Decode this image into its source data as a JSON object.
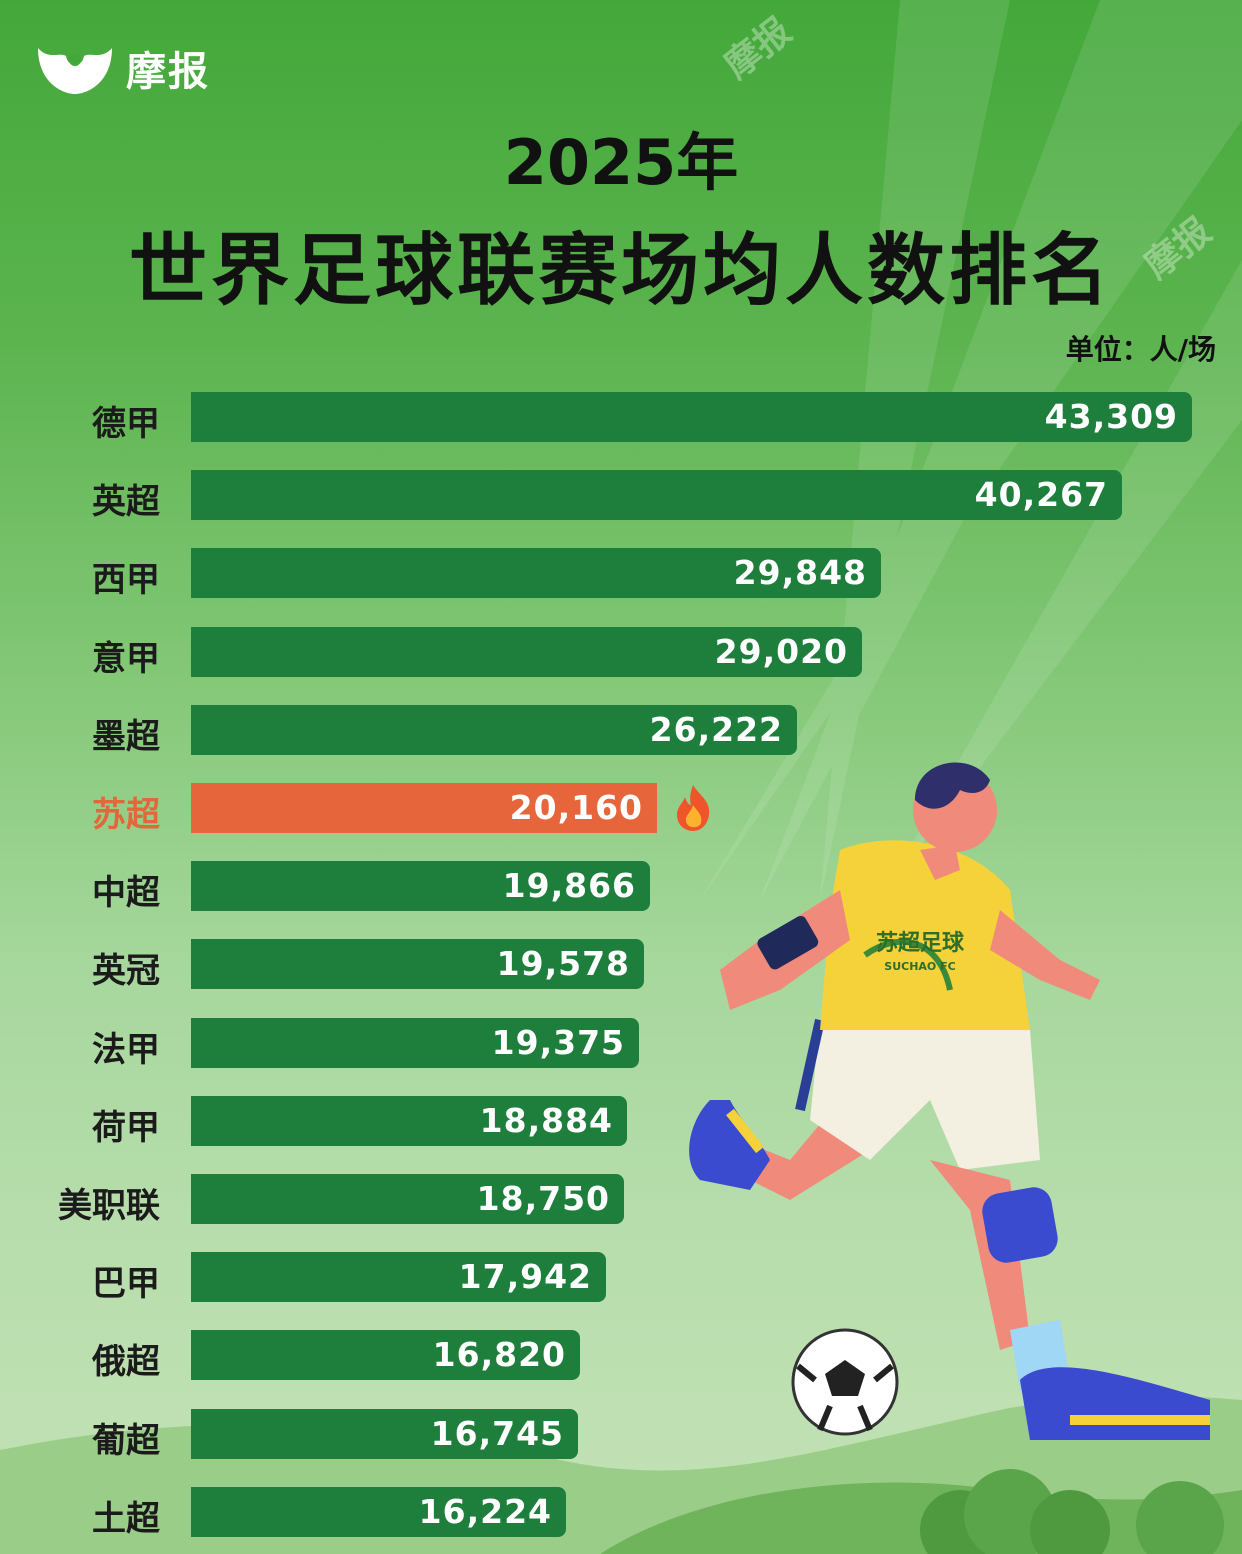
{
  "brand": {
    "logo_text": "摩报",
    "watermark_text": "摩报"
  },
  "chart_data": {
    "type": "bar",
    "orientation": "horizontal",
    "title": "2025年",
    "subtitle": "世界足球联赛场均人数排名",
    "unit_label": "单位：人/场",
    "categories": [
      "德甲",
      "英超",
      "西甲",
      "意甲",
      "墨超",
      "苏超",
      "中超",
      "英冠",
      "法甲",
      "荷甲",
      "美职联",
      "巴甲",
      "俄超",
      "葡超",
      "土超"
    ],
    "values": [
      43309,
      40267,
      29848,
      29020,
      26222,
      20160,
      19866,
      19578,
      19375,
      18884,
      18750,
      17942,
      16820,
      16745,
      16224
    ],
    "value_labels": [
      "43,309",
      "40,267",
      "29,848",
      "29,020",
      "26,222",
      "20,160",
      "19,866",
      "19,578",
      "19,375",
      "18,884",
      "18,750",
      "17,942",
      "16,820",
      "16,745",
      "16,224"
    ],
    "highlight_category": "苏超",
    "colors": {
      "bar": "#1e7f3d",
      "highlight": "#e7653b",
      "label": "#1b1b1b",
      "highlight_label": "#e0683a",
      "value_text": "#ffffff"
    },
    "highlight_icon": "fire-icon",
    "grid": false,
    "legend": "none"
  },
  "illustration": {
    "subject": "soccer-player-icon",
    "jersey_text": "苏超足球",
    "jersey_subtext": "SUCHAO FC",
    "ball": "soccer-ball-icon"
  }
}
